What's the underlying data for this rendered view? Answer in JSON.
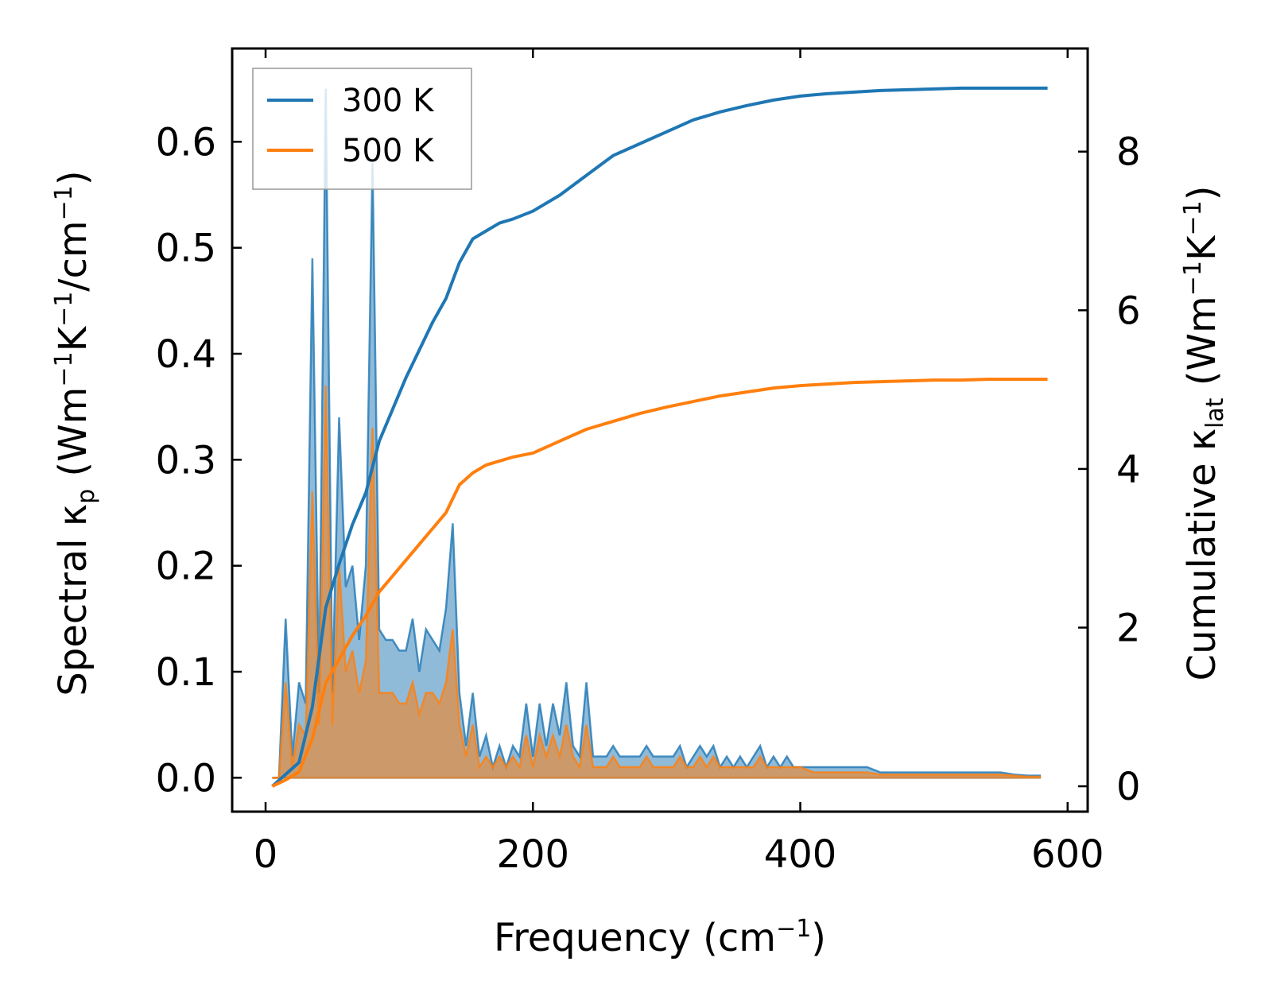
{
  "chart_data": {
    "type": "line",
    "xlabel": {
      "base": "Frequency (cm",
      "sup": "−1",
      "end": ")"
    },
    "ylabel_left": {
      "pre": "Spectral κ",
      "sub": "p",
      "mid": " (Wm",
      "sup1": "−1",
      "mid2": "K",
      "sup2": "−1",
      "mid3": "/cm",
      "sup3": "−1",
      "end": ")"
    },
    "ylabel_right": {
      "pre": "Cumulative κ",
      "sub": "lat",
      "mid": " (Wm",
      "sup1": "−1",
      "mid2": "K",
      "sup2": "−1",
      "end": ")"
    },
    "xlim": [
      -25,
      615
    ],
    "ylim_left": [
      -0.032,
      0.688
    ],
    "ylim_right": [
      -0.32,
      9.3
    ],
    "xticks": [
      0,
      200,
      400,
      600
    ],
    "xtick_labels": [
      "0",
      "200",
      "400",
      "600"
    ],
    "yticks_left": [
      0.0,
      0.1,
      0.2,
      0.3,
      0.4,
      0.5,
      0.6
    ],
    "ytick_labels_left": [
      "0.0",
      "0.1",
      "0.2",
      "0.3",
      "0.4",
      "0.5",
      "0.6"
    ],
    "yticks_right": [
      0,
      2,
      4,
      6,
      8
    ],
    "ytick_labels_right": [
      "0",
      "2",
      "4",
      "6",
      "8"
    ],
    "legend": {
      "placement": "upper-left",
      "entries": [
        "300 K",
        "500 K"
      ]
    },
    "colors": {
      "300 K": "#1f77b4",
      "500 K": "#ff7f0e"
    },
    "spectral": [
      {
        "name": "300 K",
        "axis": "left",
        "x": [
          5,
          10,
          15,
          20,
          25,
          30,
          35,
          40,
          45,
          50,
          55,
          60,
          65,
          70,
          75,
          80,
          85,
          90,
          95,
          100,
          105,
          110,
          115,
          120,
          125,
          130,
          135,
          140,
          145,
          150,
          155,
          160,
          165,
          170,
          175,
          180,
          185,
          190,
          195,
          200,
          205,
          210,
          215,
          220,
          225,
          230,
          235,
          240,
          245,
          250,
          255,
          260,
          265,
          270,
          275,
          280,
          285,
          290,
          295,
          300,
          305,
          310,
          315,
          320,
          325,
          330,
          335,
          340,
          345,
          350,
          355,
          360,
          365,
          370,
          375,
          380,
          385,
          390,
          395,
          400,
          410,
          420,
          430,
          440,
          450,
          460,
          470,
          480,
          490,
          500,
          510,
          520,
          530,
          540,
          550,
          560,
          570,
          580
        ],
        "y": [
          0.0,
          0.0,
          0.15,
          0.02,
          0.09,
          0.07,
          0.49,
          0.08,
          0.65,
          0.08,
          0.34,
          0.18,
          0.2,
          0.13,
          0.2,
          0.58,
          0.14,
          0.13,
          0.13,
          0.12,
          0.12,
          0.15,
          0.1,
          0.14,
          0.13,
          0.12,
          0.16,
          0.24,
          0.08,
          0.03,
          0.08,
          0.02,
          0.04,
          0.01,
          0.03,
          0.01,
          0.03,
          0.02,
          0.07,
          0.02,
          0.07,
          0.03,
          0.07,
          0.04,
          0.09,
          0.03,
          0.02,
          0.09,
          0.02,
          0.02,
          0.02,
          0.03,
          0.02,
          0.02,
          0.02,
          0.02,
          0.03,
          0.02,
          0.02,
          0.02,
          0.02,
          0.03,
          0.01,
          0.02,
          0.03,
          0.02,
          0.03,
          0.01,
          0.02,
          0.01,
          0.02,
          0.01,
          0.02,
          0.03,
          0.01,
          0.02,
          0.01,
          0.02,
          0.01,
          0.01,
          0.01,
          0.01,
          0.01,
          0.01,
          0.01,
          0.005,
          0.005,
          0.005,
          0.005,
          0.005,
          0.005,
          0.005,
          0.005,
          0.005,
          0.005,
          0.003,
          0.002,
          0.002
        ]
      },
      {
        "name": "500 K",
        "axis": "left",
        "x": [
          5,
          10,
          15,
          20,
          25,
          30,
          35,
          40,
          45,
          50,
          55,
          60,
          65,
          70,
          75,
          80,
          85,
          90,
          95,
          100,
          105,
          110,
          115,
          120,
          125,
          130,
          135,
          140,
          145,
          150,
          155,
          160,
          165,
          170,
          175,
          180,
          185,
          190,
          195,
          200,
          205,
          210,
          215,
          220,
          225,
          230,
          235,
          240,
          245,
          250,
          255,
          260,
          265,
          270,
          275,
          280,
          285,
          290,
          295,
          300,
          305,
          310,
          315,
          320,
          325,
          330,
          335,
          340,
          345,
          350,
          355,
          360,
          365,
          370,
          375,
          380,
          385,
          390,
          395,
          400,
          410,
          420,
          430,
          440,
          450,
          460,
          470,
          480,
          490,
          500,
          510,
          520,
          530,
          540,
          550,
          560,
          570,
          580
        ],
        "y": [
          0.0,
          0.0,
          0.09,
          0.01,
          0.05,
          0.04,
          0.27,
          0.05,
          0.37,
          0.05,
          0.2,
          0.1,
          0.12,
          0.08,
          0.11,
          0.33,
          0.08,
          0.08,
          0.08,
          0.07,
          0.07,
          0.09,
          0.06,
          0.08,
          0.08,
          0.07,
          0.09,
          0.14,
          0.05,
          0.02,
          0.05,
          0.01,
          0.02,
          0.01,
          0.02,
          0.01,
          0.02,
          0.01,
          0.04,
          0.01,
          0.04,
          0.02,
          0.04,
          0.02,
          0.05,
          0.02,
          0.01,
          0.05,
          0.01,
          0.01,
          0.01,
          0.02,
          0.01,
          0.01,
          0.01,
          0.01,
          0.02,
          0.01,
          0.01,
          0.01,
          0.01,
          0.02,
          0.01,
          0.01,
          0.02,
          0.01,
          0.02,
          0.01,
          0.01,
          0.01,
          0.01,
          0.01,
          0.01,
          0.02,
          0.01,
          0.01,
          0.01,
          0.01,
          0.01,
          0.01,
          0.005,
          0.005,
          0.005,
          0.005,
          0.005,
          0.003,
          0.003,
          0.003,
          0.003,
          0.003,
          0.003,
          0.003,
          0.003,
          0.003,
          0.003,
          0.002,
          0.001,
          0.001
        ]
      }
    ],
    "series": [
      {
        "name": "300 K",
        "axis": "right",
        "x": [
          5,
          15,
          25,
          35,
          45,
          55,
          65,
          75,
          85,
          95,
          105,
          115,
          125,
          135,
          145,
          155,
          165,
          175,
          185,
          200,
          220,
          240,
          260,
          280,
          300,
          320,
          340,
          360,
          380,
          400,
          420,
          440,
          460,
          480,
          500,
          520,
          540,
          560,
          585
        ],
        "values": [
          0,
          0.15,
          0.3,
          1.0,
          2.25,
          2.8,
          3.3,
          3.7,
          4.35,
          4.75,
          5.15,
          5.5,
          5.85,
          6.15,
          6.6,
          6.9,
          7.0,
          7.1,
          7.15,
          7.25,
          7.45,
          7.7,
          7.95,
          8.1,
          8.25,
          8.4,
          8.5,
          8.58,
          8.65,
          8.7,
          8.73,
          8.75,
          8.77,
          8.78,
          8.79,
          8.8,
          8.8,
          8.8,
          8.8
        ]
      },
      {
        "name": "500 K",
        "axis": "right",
        "x": [
          5,
          15,
          25,
          35,
          45,
          55,
          65,
          75,
          85,
          95,
          105,
          115,
          125,
          135,
          145,
          155,
          165,
          175,
          185,
          200,
          220,
          240,
          260,
          280,
          300,
          320,
          340,
          360,
          380,
          400,
          420,
          440,
          460,
          480,
          500,
          520,
          540,
          560,
          585
        ],
        "values": [
          0,
          0.08,
          0.18,
          0.6,
          1.3,
          1.6,
          1.9,
          2.15,
          2.45,
          2.65,
          2.85,
          3.05,
          3.25,
          3.45,
          3.8,
          3.95,
          4.05,
          4.1,
          4.15,
          4.2,
          4.35,
          4.5,
          4.6,
          4.7,
          4.78,
          4.85,
          4.92,
          4.97,
          5.02,
          5.05,
          5.07,
          5.09,
          5.1,
          5.11,
          5.12,
          5.12,
          5.13,
          5.13,
          5.13
        ]
      }
    ]
  }
}
